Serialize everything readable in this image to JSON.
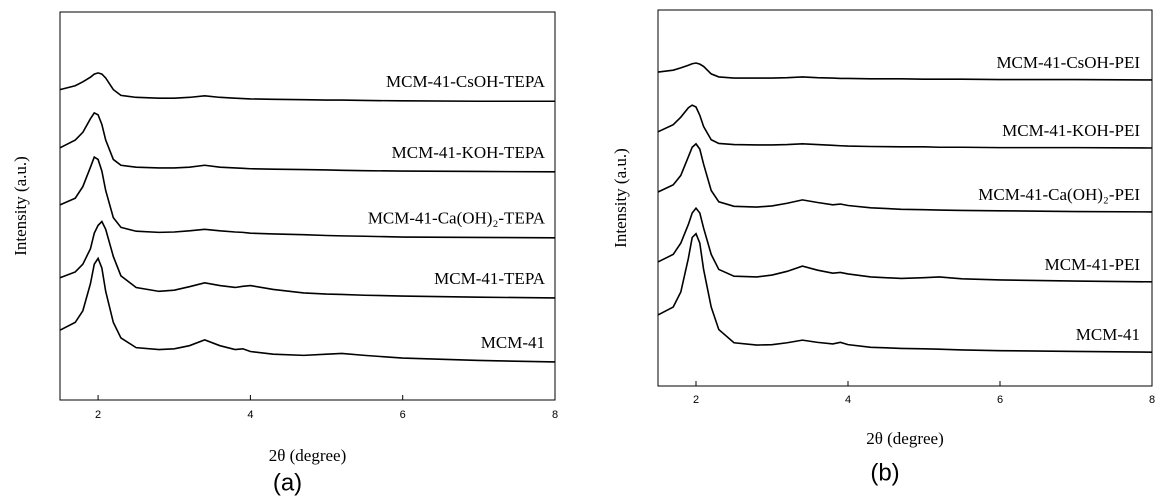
{
  "chart_data": [
    {
      "type": "line",
      "panel_label": "(a)",
      "xlabel": "2θ (degree)",
      "ylabel": "Intensity (a.u.)",
      "xlim": [
        1.5,
        8
      ],
      "xticks": [
        2,
        4,
        6,
        8
      ],
      "ylim": [
        0,
        100
      ],
      "x": [
        1.5,
        1.7,
        1.8,
        1.9,
        1.95,
        2.0,
        2.05,
        2.1,
        2.2,
        2.3,
        2.5,
        2.8,
        3.0,
        3.2,
        3.4,
        3.6,
        3.8,
        3.9,
        4.0,
        4.3,
        4.7,
        5.0,
        5.2,
        5.5,
        6.0,
        7.0,
        8.0
      ],
      "series": [
        {
          "name": "MCM-41",
          "color": "#000000",
          "values": [
            18,
            20,
            23,
            30,
            35,
            36.5,
            34,
            28,
            20,
            16,
            13.5,
            13,
            13.2,
            14,
            15.5,
            14,
            13,
            13.2,
            12.5,
            11.8,
            11.5,
            11.8,
            12,
            11.5,
            10.8,
            10.2,
            9.8
          ]
        },
        {
          "name": "MCM-41-TEPA",
          "color": "#000000",
          "values": [
            31.5,
            33,
            35,
            39,
            43,
            45,
            46,
            44,
            37,
            32,
            29,
            28,
            28.3,
            29.2,
            30.2,
            29.5,
            29,
            29.3,
            29.5,
            28.5,
            27.6,
            27.3,
            27.2,
            27,
            26.8,
            26.5,
            26.3
          ]
        },
        {
          "name": "MCM-41-Ca(OH)₂-TEPA",
          "color": "#000000",
          "values": [
            50.3,
            52,
            55,
            60,
            62.6,
            62,
            59,
            54,
            47,
            44.5,
            43.5,
            43.2,
            43.3,
            43.6,
            44,
            43.6,
            43.3,
            43.2,
            43,
            42.8,
            42.6,
            42.4,
            42.3,
            42.2,
            42,
            41.9,
            41.8
          ]
        },
        {
          "name": "MCM-41-KOH-TEPA",
          "color": "#000000",
          "values": [
            65,
            67,
            69,
            72.5,
            74,
            73.5,
            71,
            67,
            62,
            60.5,
            60,
            59.8,
            59.8,
            60,
            60.5,
            60,
            59.8,
            59.7,
            59.6,
            59.5,
            59.4,
            59.3,
            59.2,
            59.1,
            59,
            58.9,
            58.8
          ]
        },
        {
          "name": "MCM-41-CsOH-TEPA",
          "color": "#000000",
          "values": [
            80,
            81,
            82,
            83.2,
            84,
            84.3,
            84,
            83,
            80,
            78.5,
            78,
            77.8,
            77.8,
            78,
            78.4,
            78,
            77.8,
            77.7,
            77.6,
            77.5,
            77.4,
            77.3,
            77.3,
            77.2,
            77.1,
            77,
            77
          ]
        }
      ]
    },
    {
      "type": "line",
      "panel_label": "(b)",
      "xlabel": "2θ (degree)",
      "ylabel": "Intensity (a.u.)",
      "xlim": [
        1.5,
        8
      ],
      "xticks": [
        2,
        4,
        6,
        8
      ],
      "ylim": [
        0,
        100
      ],
      "x": [
        1.5,
        1.7,
        1.8,
        1.9,
        1.95,
        2.0,
        2.05,
        2.1,
        2.2,
        2.3,
        2.5,
        2.8,
        3.0,
        3.2,
        3.4,
        3.6,
        3.8,
        3.9,
        4.0,
        4.3,
        4.7,
        5.0,
        5.2,
        5.5,
        6.0,
        7.0,
        8.0
      ],
      "series": [
        {
          "name": "MCM-41",
          "color": "#000000",
          "values": [
            18.9,
            21,
            25,
            34,
            39.5,
            40.5,
            38,
            31,
            21,
            15,
            11.5,
            10.9,
            11,
            11.5,
            12.2,
            11.6,
            11.2,
            11.6,
            11,
            10.3,
            10,
            9.9,
            9.8,
            9.6,
            9.4,
            9.2,
            9
          ]
        },
        {
          "name": "MCM-41-PEI",
          "color": "#000000",
          "values": [
            33,
            35,
            38,
            43,
            46,
            47.3,
            46,
            42,
            35,
            31,
            29.2,
            29,
            29.5,
            30.5,
            31.9,
            30.8,
            30,
            30.2,
            29.8,
            29,
            28.6,
            28.8,
            29,
            28.5,
            28.2,
            27.9,
            27.7
          ]
        },
        {
          "name": "MCM-41-Ca(OH)₂-PEI",
          "color": "#000000",
          "values": [
            51.6,
            53.5,
            56,
            61,
            63.5,
            64.4,
            63,
            59,
            52,
            49,
            47.8,
            47.6,
            47.9,
            48.6,
            49.5,
            48.8,
            48.2,
            48.4,
            48,
            47.4,
            47,
            46.9,
            46.8,
            46.7,
            46.6,
            46.4,
            46.3
          ]
        },
        {
          "name": "MCM-41-KOH-PEI",
          "color": "#000000",
          "values": [
            67.6,
            69.5,
            71.5,
            74,
            74.7,
            74.2,
            72,
            69,
            65.5,
            64.5,
            64.2,
            64.1,
            64.1,
            64.2,
            64.4,
            64.2,
            64,
            63.9,
            63.8,
            63.7,
            63.6,
            63.6,
            63.5,
            63.5,
            63.4,
            63.4,
            63.3
          ]
        },
        {
          "name": "MCM-41-CsOH-PEI",
          "color": "#000000",
          "values": [
            83.5,
            84,
            84.6,
            85.3,
            85.7,
            85.9,
            85.6,
            85,
            83,
            82.2,
            81.9,
            81.9,
            81.9,
            82,
            82.2,
            82,
            81.9,
            81.8,
            81.8,
            81.7,
            81.7,
            81.6,
            81.6,
            81.6,
            81.5,
            81.5,
            81.4
          ]
        }
      ]
    }
  ]
}
